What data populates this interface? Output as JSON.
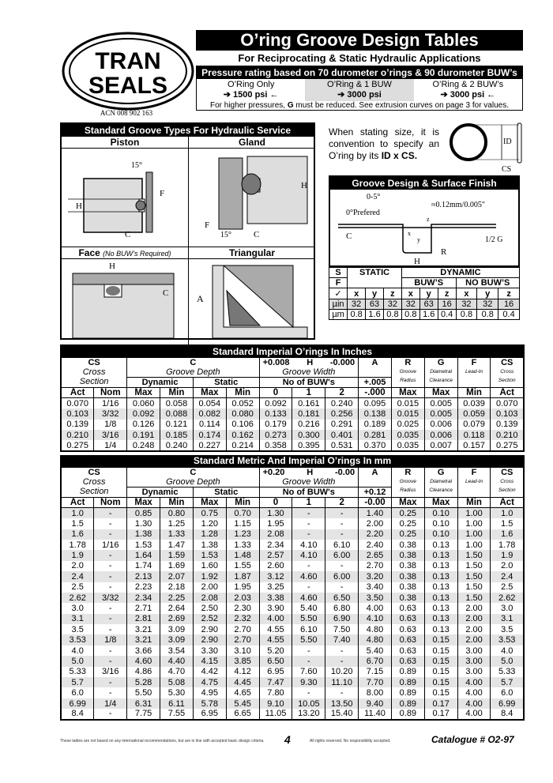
{
  "logo": {
    "line1": "TRAN",
    "line2": "SEALS"
  },
  "acn": "ACN 008 902 163",
  "title": "O’ring Groove Design Tables",
  "subtitle": "For Reciprocating & Static Hydraulic Applications",
  "pressure": {
    "header": "Pressure rating based on 70 durometer o’rings & 90 durometer BUW’s",
    "options": [
      {
        "label": "O’Ring Only",
        "value": "➔ 1500 psi ←"
      },
      {
        "label": "O’Ring & 1 BUW",
        "value": "➔ 3000 psi"
      },
      {
        "label": "O’Ring & 2 BUW’s",
        "value": "➔ 3000 psi ←"
      }
    ],
    "note_pre": "For higher pressures, ",
    "note_bold": "G",
    "note_post": " must be reduced. See extrusion curves on page 3 for values."
  },
  "groove_types": {
    "header": "Standard Groove Types For Hydraulic Service",
    "piston": "Piston",
    "gland": "Gland",
    "face": "Face",
    "face_note": "(No BUW’s Required)",
    "triangular": "Triangular",
    "labels": {
      "angle": "15°",
      "H": "H",
      "F": "F",
      "C": "C",
      "A": "A"
    }
  },
  "convention": {
    "text": "When stating size, it is convention to specify an O’ring by its ",
    "bold": "ID x CS.",
    "id": "ID",
    "cs": "CS"
  },
  "finish": {
    "header": "Groove Design & Surface Finish",
    "angle": "0-5°",
    "preferred": "0°Prefered",
    "edge": "≈0.12mm/0.005\"",
    "C": "C",
    "H": "H",
    "R": "R",
    "halfG": "1/2 G",
    "x": "x",
    "y": "y",
    "z": "z"
  },
  "surface_table": {
    "s": "S",
    "f": "F",
    "check": "✓",
    "static": "STATIC",
    "dynamic": "DYNAMIC",
    "buws": "BUW’S",
    "no_buws": "NO BUW’S",
    "cols": [
      "x",
      "y",
      "z",
      "x",
      "y",
      "z",
      "x",
      "y",
      "z"
    ],
    "rows": [
      {
        "unit": "µin",
        "values": [
          "32",
          "63",
          "32",
          "32",
          "63",
          "16",
          "32",
          "32",
          "16"
        ]
      },
      {
        "unit": "µm",
        "values": [
          "0.8",
          "1.6",
          "0.8",
          "0.8",
          "1.6",
          "0.4",
          "0.8",
          "0.8",
          "0.4"
        ]
      }
    ]
  },
  "imperial": {
    "title": "Standard Imperial O’rings In Inches",
    "head": {
      "cs": "CS",
      "cross": "Cross",
      "section": "Section",
      "c": "C",
      "depth": "Groove Depth",
      "dynamic": "Dynamic",
      "static": "Static",
      "h_plus": "+0.008",
      "h": "H",
      "h_minus": "-0.000",
      "width": "Groove Width",
      "buws": "No of BUW's",
      "a": "A",
      "a_tol": "+.005",
      "r": "R",
      "r1": "Groove",
      "r2": "Radius",
      "g": "G",
      "g1": "Diametral",
      "g2": "Clearance",
      "f": "F",
      "f1": "Lead-In",
      "cs2": "CS",
      "cs2a": "Cross",
      "cs2b": "Section",
      "sub": [
        "Act",
        "Nom",
        "Max",
        "Min",
        "Max",
        "Min",
        "0",
        "1",
        "2",
        "-.000",
        "Max",
        "Max",
        "Min",
        "Act"
      ]
    },
    "rows": [
      [
        "0.070",
        "1/16",
        "0.060",
        "0.058",
        "0.054",
        "0.052",
        "0.092",
        "0.161",
        "0.240",
        "0.095",
        "0.015",
        "0.005",
        "0.039",
        "0.070"
      ],
      [
        "0.103",
        "3/32",
        "0.092",
        "0.088",
        "0.082",
        "0.080",
        "0.133",
        "0.181",
        "0.256",
        "0.138",
        "0.015",
        "0.005",
        "0.059",
        "0.103"
      ],
      [
        "0.139",
        "1/8",
        "0.126",
        "0.121",
        "0.114",
        "0.106",
        "0.179",
        "0.216",
        "0.291",
        "0.189",
        "0.025",
        "0.006",
        "0.079",
        "0.139"
      ],
      [
        "0.210",
        "3/16",
        "0.191",
        "0.185",
        "0.174",
        "0.162",
        "0.273",
        "0.300",
        "0.401",
        "0.281",
        "0.035",
        "0.006",
        "0.118",
        "0.210"
      ],
      [
        "0.275",
        "1/4",
        "0.248",
        "0.240",
        "0.227",
        "0.214",
        "0.358",
        "0.395",
        "0.531",
        "0.370",
        "0.035",
        "0.007",
        "0.157",
        "0.275"
      ]
    ]
  },
  "metric": {
    "title": "Standard Metric And Imperial O’rings In mm",
    "head": {
      "cs": "CS",
      "cross": "Cross",
      "section": "Section",
      "c": "C",
      "depth": "Groove Depth",
      "dynamic": "Dynamic",
      "static": "Static",
      "h_plus": "+0.20",
      "h": "H",
      "h_minus": "-0.00",
      "width": "Groove Width",
      "buws": "No of BUW's",
      "a": "A",
      "a_tol": "+0.12",
      "r": "R",
      "r1": "Groove",
      "r2": "Radius",
      "g": "G",
      "g1": "Diametral",
      "g2": "Clearance",
      "f": "F",
      "f1": "Lead-In",
      "cs2": "CS",
      "cs2a": "Cross",
      "cs2b": "Section",
      "sub": [
        "Act",
        "Nom",
        "Max",
        "Min",
        "Max",
        "Min",
        "0",
        "1",
        "2",
        "-0.00",
        "Max",
        "Max",
        "Min",
        "Act"
      ]
    },
    "rows": [
      [
        "1.0",
        "-",
        "0.85",
        "0.80",
        "0.75",
        "0.70",
        "1.30",
        "-",
        "-",
        "1.40",
        "0.25",
        "0.10",
        "1.00",
        "1.0"
      ],
      [
        "1.5",
        "-",
        "1.30",
        "1.25",
        "1.20",
        "1.15",
        "1.95",
        "-",
        "-",
        "2.00",
        "0.25",
        "0.10",
        "1.00",
        "1.5"
      ],
      [
        "1.6",
        "-",
        "1.38",
        "1.33",
        "1.28",
        "1.23",
        "2.08",
        "-",
        "-",
        "2.20",
        "0.25",
        "0.10",
        "1.00",
        "1.6"
      ],
      [
        "1.78",
        "1/16",
        "1.53",
        "1.47",
        "1.38",
        "1.33",
        "2.34",
        "4.10",
        "6.10",
        "2.40",
        "0.38",
        "0.13",
        "1.00",
        "1.78"
      ],
      [
        "1.9",
        "-",
        "1.64",
        "1.59",
        "1.53",
        "1.48",
        "2.57",
        "4.10",
        "6.00",
        "2.65",
        "0.38",
        "0.13",
        "1.50",
        "1.9"
      ],
      [
        "2.0",
        "-",
        "1.74",
        "1.69",
        "1.60",
        "1.55",
        "2.60",
        "-",
        "-",
        "2.70",
        "0.38",
        "0.13",
        "1.50",
        "2.0"
      ],
      [
        "2.4",
        "-",
        "2.13",
        "2.07",
        "1.92",
        "1.87",
        "3.12",
        "4.60",
        "6.00",
        "3.20",
        "0.38",
        "0.13",
        "1.50",
        "2.4"
      ],
      [
        "2.5",
        "-",
        "2.23",
        "2.18",
        "2.00",
        "1.95",
        "3.25",
        "-",
        "-",
        "3.40",
        "0.38",
        "0.13",
        "1.50",
        "2.5"
      ],
      [
        "2.62",
        "3/32",
        "2.34",
        "2.25",
        "2.08",
        "2.03",
        "3.38",
        "4.60",
        "6.50",
        "3.50",
        "0.38",
        "0.13",
        "1.50",
        "2.62"
      ],
      [
        "3.0",
        "-",
        "2.71",
        "2.64",
        "2.50",
        "2.30",
        "3.90",
        "5.40",
        "6.80",
        "4.00",
        "0.63",
        "0.13",
        "2.00",
        "3.0"
      ],
      [
        "3.1",
        "-",
        "2.81",
        "2.69",
        "2.52",
        "2.32",
        "4.00",
        "5.50",
        "6.90",
        "4.10",
        "0.63",
        "0.13",
        "2.00",
        "3.1"
      ],
      [
        "3.5",
        "-",
        "3.21",
        "3.09",
        "2.90",
        "2.70",
        "4.55",
        "6.10",
        "7.50",
        "4.80",
        "0.63",
        "0.13",
        "2.00",
        "3.5"
      ],
      [
        "3.53",
        "1/8",
        "3.21",
        "3.09",
        "2.90",
        "2.70",
        "4.55",
        "5.50",
        "7.40",
        "4.80",
        "0.63",
        "0.15",
        "2.00",
        "3.53"
      ],
      [
        "4.0",
        "-",
        "3.66",
        "3.54",
        "3.30",
        "3.10",
        "5.20",
        "-",
        "-",
        "5.40",
        "0.63",
        "0.15",
        "3.00",
        "4.0"
      ],
      [
        "5.0",
        "-",
        "4.60",
        "4.40",
        "4.15",
        "3.85",
        "6.50",
        "-",
        "-",
        "6.70",
        "0.63",
        "0.15",
        "3.00",
        "5.0"
      ],
      [
        "5.33",
        "3/16",
        "4.86",
        "4.70",
        "4.42",
        "4.12",
        "6.95",
        "7.60",
        "10.20",
        "7.15",
        "0.89",
        "0.15",
        "3.00",
        "5.33"
      ],
      [
        "5.7",
        "-",
        "5.28",
        "5.08",
        "4.75",
        "4.45",
        "7.47",
        "9.30",
        "11.10",
        "7.70",
        "0.89",
        "0.15",
        "4.00",
        "5.7"
      ],
      [
        "6.0",
        "-",
        "5.50",
        "5.30",
        "4.95",
        "4.65",
        "7.80",
        "-",
        "-",
        "8.00",
        "0.89",
        "0.15",
        "4.00",
        "6.0"
      ],
      [
        "6.99",
        "1/4",
        "6.31",
        "6.11",
        "5.78",
        "5.45",
        "9.10",
        "10.05",
        "13.50",
        "9.40",
        "0.89",
        "0.17",
        "4.00",
        "6.99"
      ],
      [
        "8.4",
        "-",
        "7.75",
        "7.55",
        "6.95",
        "6.65",
        "11.05",
        "13.20",
        "15.40",
        "11.40",
        "0.89",
        "0.17",
        "4.00",
        "8.4"
      ]
    ]
  },
  "footer": {
    "disclaimer": "These tables are not based on any international recommendations, but are in line with accepted basic design criteria.",
    "page": "4",
    "rights": "All rights reserved. No responsibility accepted.",
    "catalogue": "Catalogue # O2-97"
  }
}
